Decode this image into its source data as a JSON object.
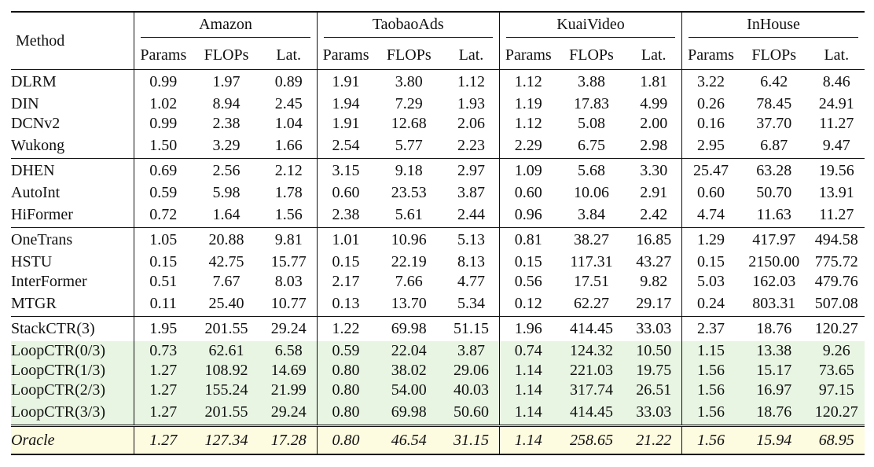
{
  "header": {
    "method": "Method",
    "datasets": [
      "Amazon",
      "TaobaoAds",
      "KuaiVideo",
      "InHouse"
    ],
    "metrics": [
      "Params",
      "FLOPs",
      "Lat."
    ]
  },
  "groups": [
    [
      {
        "method": "DLRM",
        "values": [
          "0.99",
          "1.97",
          "0.89",
          "1.91",
          "3.80",
          "1.12",
          "1.12",
          "3.88",
          "1.81",
          "3.22",
          "6.42",
          "8.46"
        ]
      },
      {
        "method": "DIN",
        "values": [
          "1.02",
          "8.94",
          "2.45",
          "1.94",
          "7.29",
          "1.93",
          "1.19",
          "17.83",
          "4.99",
          "0.26",
          "78.45",
          "24.91"
        ]
      },
      {
        "method": "DCNv2",
        "values": [
          "0.99",
          "2.38",
          "1.04",
          "1.91",
          "12.68",
          "2.06",
          "1.12",
          "5.08",
          "2.00",
          "0.16",
          "37.70",
          "11.27"
        ]
      },
      {
        "method": "Wukong",
        "values": [
          "1.50",
          "3.29",
          "1.66",
          "2.54",
          "5.77",
          "2.23",
          "2.29",
          "6.75",
          "2.98",
          "2.95",
          "6.87",
          "9.47"
        ]
      }
    ],
    [
      {
        "method": "DHEN",
        "values": [
          "0.69",
          "2.56",
          "2.12",
          "3.15",
          "9.18",
          "2.97",
          "1.09",
          "5.68",
          "3.30",
          "25.47",
          "63.28",
          "19.56"
        ]
      },
      {
        "method": "AutoInt",
        "values": [
          "0.59",
          "5.98",
          "1.78",
          "0.60",
          "23.53",
          "3.87",
          "0.60",
          "10.06",
          "2.91",
          "0.60",
          "50.70",
          "13.91"
        ]
      },
      {
        "method": "HiFormer",
        "values": [
          "0.72",
          "1.64",
          "1.56",
          "2.38",
          "5.61",
          "2.44",
          "0.96",
          "3.84",
          "2.42",
          "4.74",
          "11.63",
          "11.27"
        ]
      }
    ],
    [
      {
        "method": "OneTrans",
        "values": [
          "1.05",
          "20.88",
          "9.81",
          "1.01",
          "10.96",
          "5.13",
          "0.81",
          "38.27",
          "16.85",
          "1.29",
          "417.97",
          "494.58"
        ]
      },
      {
        "method": "HSTU",
        "values": [
          "0.15",
          "42.75",
          "15.77",
          "0.15",
          "22.19",
          "8.13",
          "0.15",
          "117.31",
          "43.27",
          "0.15",
          "2150.00",
          "775.72"
        ]
      },
      {
        "method": "InterFormer",
        "values": [
          "0.51",
          "7.67",
          "8.03",
          "2.17",
          "7.66",
          "4.77",
          "0.56",
          "17.51",
          "9.82",
          "5.03",
          "162.03",
          "479.76"
        ]
      },
      {
        "method": "MTGR",
        "values": [
          "0.11",
          "25.40",
          "10.77",
          "0.13",
          "13.70",
          "5.34",
          "0.12",
          "62.27",
          "29.17",
          "0.24",
          "803.31",
          "507.08"
        ]
      }
    ],
    [
      {
        "method": "StackCTR(3)",
        "values": [
          "1.95",
          "201.55",
          "29.24",
          "1.22",
          "69.98",
          "51.15",
          "1.96",
          "414.45",
          "33.03",
          "2.37",
          "18.76",
          "120.27"
        ]
      },
      {
        "method": "LoopCTR(0/3)",
        "ours": true,
        "values": [
          "0.73",
          "62.61",
          "6.58",
          "0.59",
          "22.04",
          "3.87",
          "0.74",
          "124.32",
          "10.50",
          "1.15",
          "13.38",
          "9.26"
        ]
      },
      {
        "method": "LoopCTR(1/3)",
        "ours": true,
        "values": [
          "1.27",
          "108.92",
          "14.69",
          "0.80",
          "38.02",
          "29.06",
          "1.14",
          "221.03",
          "19.75",
          "1.56",
          "15.17",
          "73.65"
        ]
      },
      {
        "method": "LoopCTR(2/3)",
        "ours": true,
        "values": [
          "1.27",
          "155.24",
          "21.99",
          "0.80",
          "54.00",
          "40.03",
          "1.14",
          "317.74",
          "26.51",
          "1.56",
          "16.97",
          "97.15"
        ]
      },
      {
        "method": "LoopCTR(3/3)",
        "ours": true,
        "values": [
          "1.27",
          "201.55",
          "29.24",
          "0.80",
          "69.98",
          "50.60",
          "1.14",
          "414.45",
          "33.03",
          "1.56",
          "18.76",
          "120.27"
        ]
      }
    ]
  ],
  "oracle": {
    "method": "Oracle",
    "values": [
      "1.27",
      "127.34",
      "17.28",
      "0.80",
      "46.54",
      "31.15",
      "1.14",
      "258.65",
      "21.22",
      "1.56",
      "15.94",
      "68.95"
    ]
  }
}
